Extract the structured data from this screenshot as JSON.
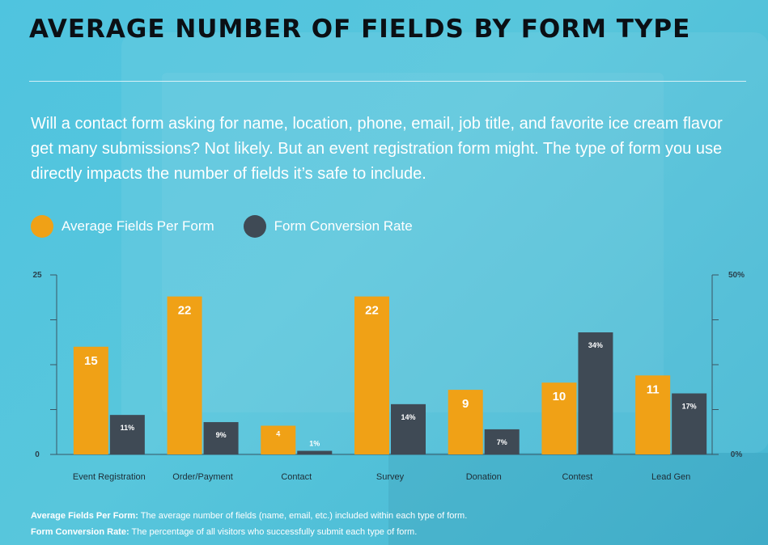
{
  "title": "AVERAGE NUMBER OF FIELDS BY FORM TYPE",
  "intro": "Will a contact form asking for name, location, phone, email, job title, and favorite ice cream flavor get many submissions? Not likely. But an event registration form might. The type of form you use directly impacts the number of fields it’s safe to include.",
  "legend": [
    {
      "label": "Average Fields Per Form",
      "color": "#f0a116"
    },
    {
      "label": "Form Conversion Rate",
      "color": "#3f4a55"
    }
  ],
  "footnotes": [
    {
      "term": "Average Fields Per Form:",
      "text": "The average number of fields (name, email, etc.) included within each type of form."
    },
    {
      "term": "Form Conversion Rate:",
      "text": "The percentage of all visitors who successfully submit each type of form."
    }
  ],
  "colors": {
    "fields": "#f0a116",
    "conversion": "#3f4a55",
    "axis": "#3a5563"
  },
  "chart_data": {
    "type": "bar",
    "categories": [
      "Event Registration",
      "Order/Payment",
      "Contact",
      "Survey",
      "Donation",
      "Contest",
      "Lead Gen"
    ],
    "series": [
      {
        "name": "Average Fields Per Form",
        "values": [
          15,
          22,
          4,
          22,
          9,
          10,
          11
        ],
        "labels": [
          "15",
          "22",
          "4",
          "22",
          "9",
          "10",
          "11"
        ],
        "axis": "left"
      },
      {
        "name": "Form Conversion Rate",
        "values": [
          11,
          9,
          1,
          14,
          7,
          34,
          17
        ],
        "labels": [
          "11%",
          "9%",
          "1%",
          "14%",
          "7%",
          "34%",
          "17%"
        ],
        "axis": "right"
      }
    ],
    "y_left": {
      "range": [
        0,
        25
      ],
      "tick_labels": [
        "0",
        "25"
      ]
    },
    "y_right": {
      "range": [
        0,
        50
      ],
      "tick_labels": [
        "0%",
        "50%"
      ]
    },
    "grid": false,
    "legend_position": "top-left"
  }
}
